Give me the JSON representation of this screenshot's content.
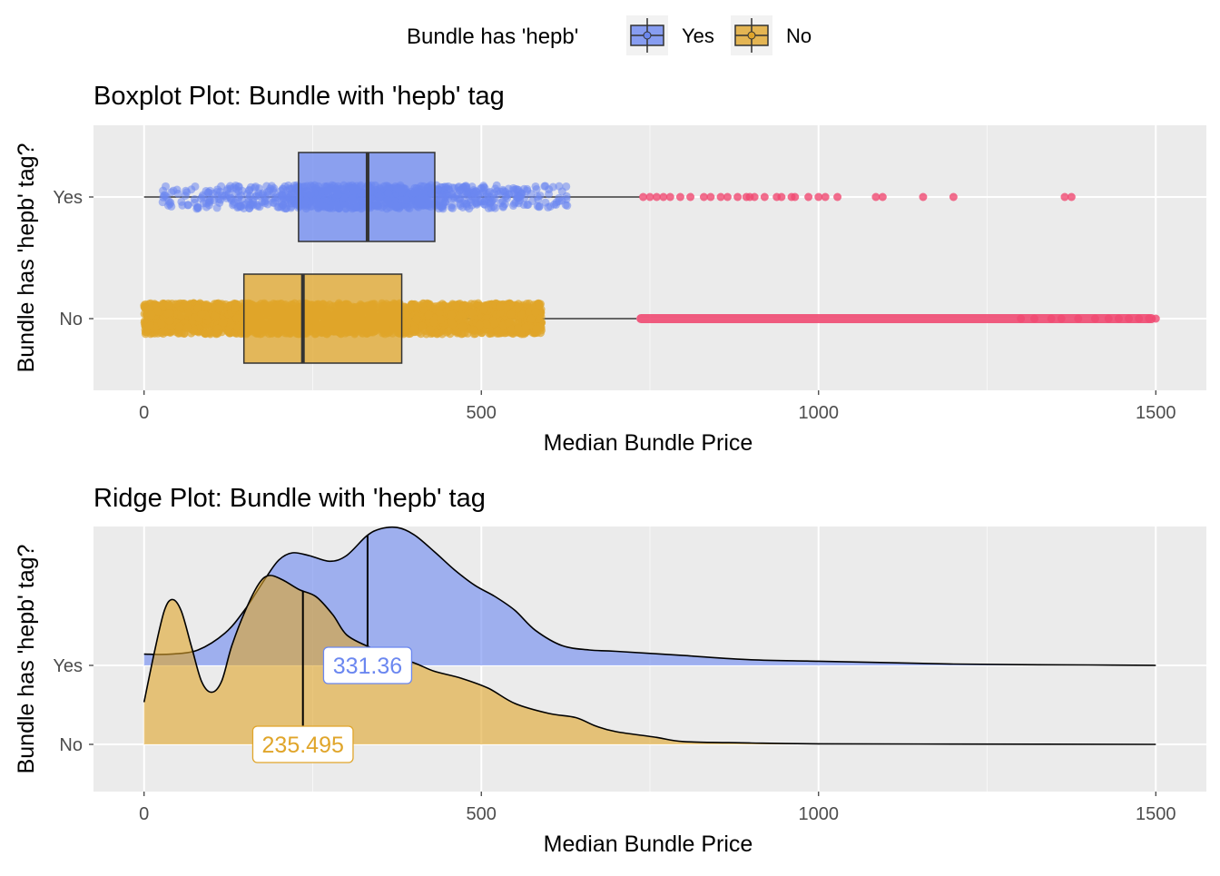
{
  "legend": {
    "title": "Bundle has 'hepb'",
    "items": [
      {
        "label": "Yes",
        "color": "#6b87f0"
      },
      {
        "label": "No",
        "color": "#e0a52a"
      }
    ]
  },
  "colors": {
    "yes": "#6b87f0",
    "no": "#e0a52a",
    "outlier": "#f04a72",
    "panel_bg": "#ebebeb",
    "grid": "#ffffff"
  },
  "chart_data": [
    {
      "type": "boxplot",
      "title": "Boxplot Plot: Bundle with 'hepb' tag",
      "xlabel": "Median Bundle Price",
      "ylabel": "Bundle has 'hepb' tag?",
      "xlim": [
        -75,
        1575
      ],
      "x_ticks": [
        "0",
        "500",
        "1000",
        "1500"
      ],
      "categories": [
        "Yes",
        "No"
      ],
      "series": [
        {
          "name": "Yes",
          "whisker_low": 0,
          "q1": 229,
          "median": 331.36,
          "q3": 431,
          "whisker_high": 735,
          "jitter_range": [
            25,
            630
          ],
          "outliers": [
            740,
            750,
            760,
            770,
            780,
            795,
            810,
            830,
            840,
            855,
            865,
            880,
            893,
            898,
            905,
            920,
            938,
            945,
            960,
            965,
            985,
            1000,
            1010,
            1028,
            1085,
            1095,
            1155,
            1200,
            1365,
            1375
          ]
        },
        {
          "name": "No",
          "whisker_low": 0,
          "q1": 148,
          "median": 235.495,
          "q3": 382,
          "whisker_high": 730,
          "jitter_range": [
            0,
            590
          ],
          "outlier_range": [
            730,
            1500
          ],
          "outliers": [
            1300,
            1320,
            1345,
            1360,
            1385,
            1410,
            1430,
            1445,
            1460,
            1475,
            1490,
            1500
          ]
        }
      ]
    },
    {
      "type": "ridge",
      "title": "Ridge Plot: Bundle with 'hepb' tag",
      "xlabel": "Median Bundle Price",
      "ylabel": "Bundle has 'hepb' tag?",
      "xlim": [
        -75,
        1575
      ],
      "x_ticks": [
        "0",
        "500",
        "1000",
        "1500"
      ],
      "categories": [
        "Yes",
        "No"
      ],
      "series": [
        {
          "name": "Yes",
          "median": 331.36,
          "median_label": "331.36",
          "density": [
            [
              0,
              0.08
            ],
            [
              40,
              0.08
            ],
            [
              80,
              0.11
            ],
            [
              120,
              0.23
            ],
            [
              150,
              0.4
            ],
            [
              180,
              0.62
            ],
            [
              200,
              0.75
            ],
            [
              220,
              0.8
            ],
            [
              245,
              0.78
            ],
            [
              275,
              0.74
            ],
            [
              300,
              0.78
            ],
            [
              330,
              0.92
            ],
            [
              350,
              0.97
            ],
            [
              375,
              0.98
            ],
            [
              400,
              0.93
            ],
            [
              430,
              0.81
            ],
            [
              460,
              0.68
            ],
            [
              490,
              0.57
            ],
            [
              520,
              0.49
            ],
            [
              550,
              0.39
            ],
            [
              580,
              0.25
            ],
            [
              620,
              0.14
            ],
            [
              660,
              0.11
            ],
            [
              700,
              0.1
            ],
            [
              800,
              0.07
            ],
            [
              900,
              0.04
            ],
            [
              1000,
              0.03
            ],
            [
              1100,
              0.02
            ],
            [
              1200,
              0.01
            ],
            [
              1300,
              0.005
            ],
            [
              1400,
              0.003
            ],
            [
              1500,
              0
            ]
          ]
        },
        {
          "name": "No",
          "median": 235.495,
          "median_label": "235.495",
          "density": [
            [
              0,
              0.3
            ],
            [
              15,
              0.65
            ],
            [
              30,
              0.95
            ],
            [
              42,
              1.03
            ],
            [
              55,
              0.95
            ],
            [
              70,
              0.7
            ],
            [
              85,
              0.45
            ],
            [
              100,
              0.37
            ],
            [
              115,
              0.45
            ],
            [
              130,
              0.7
            ],
            [
              150,
              0.95
            ],
            [
              170,
              1.14
            ],
            [
              185,
              1.2
            ],
            [
              205,
              1.17
            ],
            [
              230,
              1.1
            ],
            [
              255,
              1.05
            ],
            [
              280,
              0.92
            ],
            [
              300,
              0.78
            ],
            [
              330,
              0.7
            ],
            [
              360,
              0.64
            ],
            [
              400,
              0.58
            ],
            [
              430,
              0.52
            ],
            [
              470,
              0.47
            ],
            [
              510,
              0.4
            ],
            [
              550,
              0.29
            ],
            [
              600,
              0.22
            ],
            [
              640,
              0.19
            ],
            [
              670,
              0.13
            ],
            [
              700,
              0.09
            ],
            [
              760,
              0.05
            ],
            [
              800,
              0.02
            ],
            [
              900,
              0.01
            ],
            [
              1000,
              0.004
            ],
            [
              1200,
              0.002
            ],
            [
              1500,
              0
            ]
          ]
        }
      ]
    }
  ]
}
